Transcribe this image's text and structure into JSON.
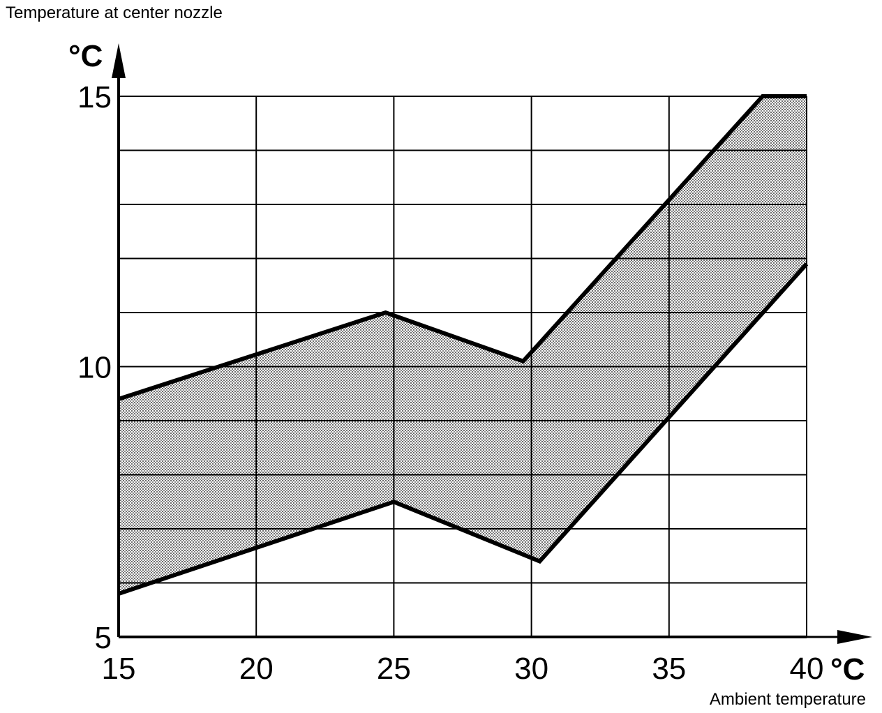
{
  "chart_data": {
    "type": "area",
    "title": "Temperature at center nozzle",
    "xlabel": "Ambient temperature",
    "x_unit": "°C",
    "y_unit": "°C",
    "xlim": [
      15,
      40
    ],
    "ylim": [
      5,
      15
    ],
    "x_ticks": [
      "15",
      "20",
      "25",
      "30",
      "35",
      "40"
    ],
    "y_ticks": [
      "5",
      "10",
      "15"
    ],
    "x_tick_values": [
      15,
      20,
      25,
      30,
      35,
      40
    ],
    "y_tick_values": [
      5,
      10,
      15
    ],
    "x_grid_values": [
      15,
      20,
      25,
      30,
      35,
      40
    ],
    "y_grid_values": [
      6,
      7,
      8,
      9,
      10,
      11,
      12,
      13,
      14,
      15
    ],
    "grid": true,
    "band_fill": "#c2c2c2",
    "series": [
      {
        "x": [
          15,
          24.7,
          29.7,
          38.4,
          40
        ],
        "values": [
          9.4,
          11.0,
          10.1,
          15.0,
          15.0
        ]
      },
      {
        "x": [
          15,
          25,
          30.3,
          40
        ],
        "values": [
          5.8,
          7.5,
          6.4,
          11.9
        ]
      }
    ]
  }
}
